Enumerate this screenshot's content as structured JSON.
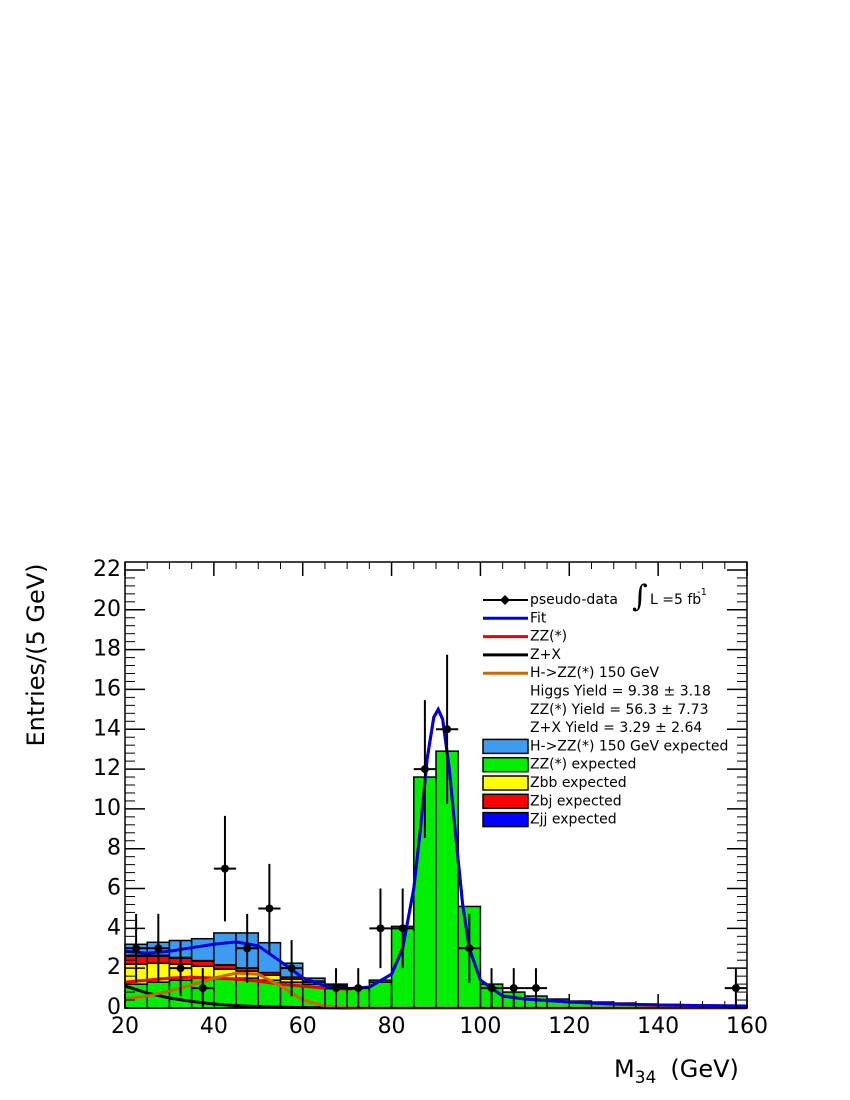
{
  "chart_data": {
    "type": "histogram",
    "y_label": "Entries/(5 GeV)",
    "x_label": "M",
    "x_label_sub": "34",
    "x_label_unit": "(GeV)",
    "xlim": [
      20,
      160
    ],
    "ylim": [
      0,
      22.4
    ],
    "xticks": [
      20,
      40,
      60,
      80,
      100,
      120,
      140,
      160
    ],
    "yticks": [
      0,
      2,
      4,
      6,
      8,
      10,
      12,
      14,
      16,
      18,
      20,
      22
    ],
    "lumi": {
      "integral": "∫",
      "text": "L =5 fb",
      "sup": "-1"
    },
    "bins": [
      20,
      25,
      30,
      35,
      40,
      45,
      50,
      55,
      60,
      65,
      70,
      75,
      80,
      85,
      90,
      95,
      100,
      105,
      110,
      115,
      120,
      125,
      130,
      135,
      140,
      145,
      150,
      155,
      160
    ],
    "stacks": [
      {
        "name": "H->ZZ(*) 150 GeV expected",
        "color": "#3d9bf2",
        "values": [
          0.55,
          0.65,
          0.85,
          1.1,
          1.6,
          1.75,
          1.5,
          0.7,
          0.15,
          0.05,
          0.02,
          0.1,
          0,
          0,
          0,
          0,
          0,
          0,
          0,
          0,
          0,
          0,
          0,
          0,
          0,
          0,
          0,
          0
        ]
      },
      {
        "name": "ZZ(*) expected",
        "color": "#00ee00",
        "values": [
          1.2,
          1.3,
          1.4,
          1.5,
          1.5,
          1.5,
          1.4,
          1.3,
          1.2,
          1.1,
          1.0,
          1.3,
          4.1,
          11.6,
          12.9,
          5.1,
          1.2,
          0.8,
          0.6,
          0.45,
          0.35,
          0.3,
          0.25,
          0.2,
          0.18,
          0.15,
          0.13,
          0.12
        ]
      },
      {
        "name": "Zbb expected",
        "color": "#ffff00",
        "values": [
          1.0,
          0.95,
          0.8,
          0.6,
          0.45,
          0.35,
          0.25,
          0.15,
          0.1,
          0.05,
          0,
          0,
          0,
          0,
          0,
          0,
          0,
          0,
          0,
          0,
          0,
          0,
          0,
          0,
          0,
          0,
          0,
          0
        ]
      },
      {
        "name": "Zbj expected",
        "color": "#ff0000",
        "values": [
          0.4,
          0.35,
          0.3,
          0.25,
          0.2,
          0.15,
          0.12,
          0.1,
          0.05,
          0,
          0,
          0,
          0,
          0,
          0,
          0,
          0,
          0,
          0,
          0,
          0,
          0,
          0,
          0,
          0,
          0,
          0,
          0
        ]
      },
      {
        "name": "Zjj expected",
        "color": "#0000ff",
        "values": [
          0.05,
          0.05,
          0.04,
          0.03,
          0.02,
          0.02,
          0.01,
          0,
          0,
          0,
          0,
          0,
          0,
          0,
          0,
          0,
          0,
          0,
          0,
          0,
          0,
          0,
          0,
          0,
          0,
          0,
          0,
          0
        ]
      }
    ],
    "curve_x": [
      20,
      25,
      30,
      35,
      40,
      45,
      50,
      55,
      60,
      65,
      70,
      75,
      80,
      82.5,
      85,
      86.5,
      88,
      89.5,
      90.5,
      91.5,
      93,
      94.5,
      96,
      97.5,
      100,
      105,
      110,
      120,
      130,
      140,
      150,
      160
    ],
    "curves": [
      {
        "name": "Fit",
        "color": "#0000dd",
        "values": [
          2.85,
          2.75,
          2.85,
          3.03,
          3.2,
          3.32,
          3.12,
          2.34,
          1.52,
          1.11,
          0.97,
          1.05,
          1.7,
          3.0,
          6.0,
          9.0,
          12.5,
          14.6,
          15.0,
          14.5,
          12.0,
          8.5,
          5.2,
          3.0,
          1.4,
          0.6,
          0.45,
          0.3,
          0.2,
          0.15,
          0.12,
          0.1
        ]
      },
      {
        "name": "ZZ(*)",
        "color": "#ee0000",
        "values": [
          1.3,
          1.4,
          1.5,
          1.55,
          1.5,
          1.45,
          1.35,
          1.2,
          1.1,
          1.0,
          0.95,
          1.05,
          1.7,
          3.0,
          6.0,
          9.0,
          12.5,
          14.6,
          15.0,
          14.5,
          12.0,
          8.5,
          5.2,
          3.0,
          1.4,
          0.6,
          0.45,
          0.3,
          0.2,
          0.15,
          0.12,
          0.1
        ]
      },
      {
        "name": "Z+X",
        "color": "#000000",
        "values": [
          1.1,
          0.75,
          0.5,
          0.33,
          0.2,
          0.12,
          0.07,
          0.04,
          0.02,
          0.01,
          0,
          0,
          0,
          0,
          0,
          0,
          0,
          0,
          0,
          0,
          0,
          0,
          0,
          0,
          0,
          0,
          0,
          0,
          0,
          0,
          0,
          0
        ]
      },
      {
        "name": "H->ZZ(*) 150 GeV",
        "color": "#cc6600",
        "values": [
          0.45,
          0.6,
          0.85,
          1.15,
          1.5,
          1.75,
          1.7,
          1.1,
          0.4,
          0.1,
          0.02,
          0,
          0,
          0,
          0,
          0,
          0,
          0,
          0,
          0,
          0,
          0,
          0,
          0,
          0,
          0,
          0,
          0,
          0,
          0,
          0,
          0
        ]
      }
    ],
    "data_points": {
      "name": "pseudo-data",
      "color": "#000000",
      "x": [
        22.5,
        27.5,
        32.5,
        37.5,
        42.5,
        47.5,
        52.5,
        57.5,
        67.5,
        72.5,
        77.5,
        82.5,
        87.5,
        92.5,
        97.5,
        102.5,
        107.5,
        112.5,
        157.5
      ],
      "values": [
        3,
        3,
        2,
        1,
        7,
        3,
        5,
        2,
        1,
        1,
        4,
        4,
        12,
        14,
        3,
        1,
        1,
        1,
        1
      ],
      "errors": [
        1.73,
        1.73,
        1.41,
        1,
        2.65,
        1.73,
        2.24,
        1.41,
        1,
        1,
        2,
        2,
        3.46,
        3.74,
        1.73,
        1,
        1,
        1,
        1
      ]
    },
    "yields": [
      "Higgs  Yield = 9.38  ± 3.18",
      "ZZ(*) Yield = 56.3  ± 7.73",
      "Z+X Yield = 3.29  ± 2.64"
    ]
  }
}
